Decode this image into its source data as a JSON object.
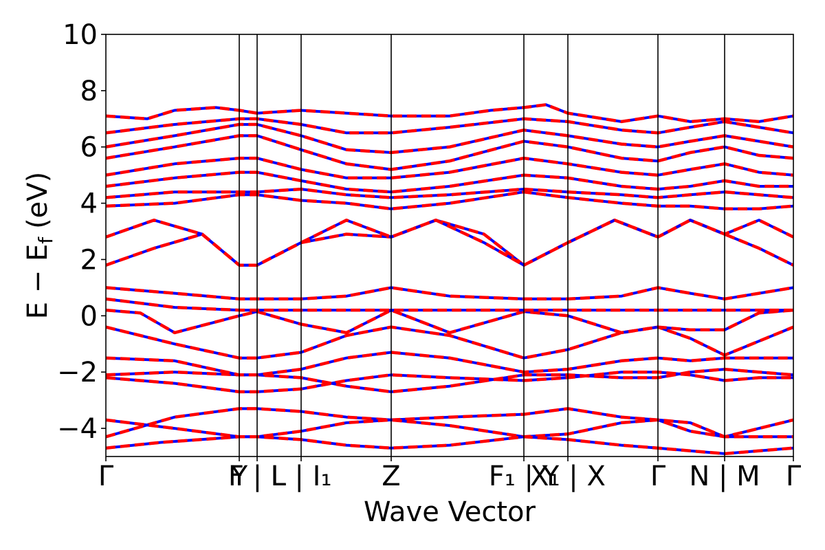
{
  "chart_data": {
    "type": "line",
    "title": "",
    "xlabel": "Wave Vector",
    "ylabel": "E − E_f (eV)",
    "ylabel_parts": {
      "main": "E − E",
      "sub": "f",
      "unit": "(eV)"
    },
    "ylim": [
      -5,
      10
    ],
    "xlim": [
      0,
      1
    ],
    "grid": false,
    "legend": "none",
    "y_ticks": [
      -4,
      -2,
      0,
      2,
      4,
      6,
      8,
      10
    ],
    "y_tick_labels": [
      "−4",
      "−2",
      "0",
      "2",
      "4",
      "6",
      "8",
      "10"
    ],
    "k_points": [
      {
        "x": 0.0,
        "label": "Γ"
      },
      {
        "x": 0.194,
        "label": "Y"
      },
      {
        "x": 0.22,
        "label": "F | L"
      },
      {
        "x": 0.284,
        "label": "L | I₁"
      },
      {
        "x": 0.415,
        "label": "Z"
      },
      {
        "x": 0.608,
        "label": "F₁ | Y"
      },
      {
        "x": 0.672,
        "label": "X₁ | X"
      },
      {
        "x": 0.803,
        "label": "Γ"
      },
      {
        "x": 0.9,
        "label": "N | M"
      },
      {
        "x": 1.0,
        "label": "Γ"
      }
    ],
    "series_styles": [
      {
        "style": "solid",
        "color": "#0000ff"
      },
      {
        "style": "dashed",
        "color": "#ff0000"
      }
    ],
    "bands": [
      {
        "x": [
          0,
          0.1,
          0.194,
          0.22,
          0.284,
          0.35,
          0.415,
          0.5,
          0.608,
          0.672,
          0.75,
          0.803,
          0.85,
          0.9,
          0.95,
          1.0
        ],
        "y": [
          -4.3,
          -3.6,
          -3.3,
          -3.3,
          -3.4,
          -3.6,
          -3.7,
          -3.6,
          -3.5,
          -3.3,
          -3.6,
          -3.7,
          -3.8,
          -4.3,
          -4.0,
          -3.7
        ]
      },
      {
        "x": [
          0,
          0.1,
          0.194,
          0.22,
          0.284,
          0.35,
          0.415,
          0.5,
          0.608,
          0.672,
          0.75,
          0.803,
          0.85,
          0.9,
          0.95,
          1.0
        ],
        "y": [
          -3.7,
          -4.0,
          -4.3,
          -4.3,
          -4.1,
          -3.8,
          -3.7,
          -3.9,
          -4.3,
          -4.2,
          -3.8,
          -3.7,
          -4.1,
          -4.3,
          -4.3,
          -4.3
        ]
      },
      {
        "x": [
          0,
          0.08,
          0.194,
          0.22,
          0.284,
          0.35,
          0.415,
          0.5,
          0.608,
          0.672,
          0.75,
          0.803,
          0.85,
          0.9,
          0.95,
          1.0
        ],
        "y": [
          -4.7,
          -4.5,
          -4.3,
          -4.3,
          -4.4,
          -4.6,
          -4.7,
          -4.6,
          -4.3,
          -4.4,
          -4.6,
          -4.7,
          -4.8,
          -4.9,
          -4.8,
          -4.7
        ]
      },
      {
        "x": [
          0,
          0.1,
          0.194,
          0.22,
          0.284,
          0.35,
          0.415,
          0.5,
          0.608,
          0.672,
          0.75,
          0.803,
          0.85,
          0.9,
          0.95,
          1.0
        ],
        "y": [
          -2.2,
          -2.4,
          -2.7,
          -2.7,
          -2.6,
          -2.3,
          -2.1,
          -2.2,
          -2.3,
          -2.2,
          -2.0,
          -2.0,
          -2.1,
          -2.3,
          -2.2,
          -2.2
        ]
      },
      {
        "x": [
          0,
          0.1,
          0.194,
          0.22,
          0.284,
          0.35,
          0.415,
          0.5,
          0.608,
          0.672,
          0.75,
          0.803,
          0.85,
          0.9,
          0.95,
          1.0
        ],
        "y": [
          -2.1,
          -2.0,
          -2.1,
          -2.1,
          -2.2,
          -2.5,
          -2.7,
          -2.5,
          -2.1,
          -2.1,
          -2.2,
          -2.2,
          -2.0,
          -1.9,
          -2.0,
          -2.1
        ]
      },
      {
        "x": [
          0,
          0.1,
          0.194,
          0.22,
          0.284,
          0.35,
          0.415,
          0.5,
          0.608,
          0.672,
          0.75,
          0.803,
          0.85,
          0.9,
          0.95,
          1.0
        ],
        "y": [
          -1.5,
          -1.6,
          -2.1,
          -2.1,
          -1.9,
          -1.5,
          -1.3,
          -1.5,
          -2.0,
          -1.9,
          -1.6,
          -1.5,
          -1.6,
          -1.5,
          -1.5,
          -1.5
        ]
      },
      {
        "x": [
          0,
          0.1,
          0.194,
          0.22,
          0.284,
          0.35,
          0.415,
          0.5,
          0.608,
          0.672,
          0.75,
          0.803,
          0.85,
          0.9,
          0.95,
          1.0
        ],
        "y": [
          -0.4,
          -1.0,
          -1.5,
          -1.5,
          -1.3,
          -0.7,
          -0.4,
          -0.7,
          -1.5,
          -1.2,
          -0.6,
          -0.4,
          -0.8,
          -1.4,
          -0.9,
          -0.4
        ]
      },
      {
        "x": [
          0,
          0.05,
          0.1,
          0.194,
          0.22,
          0.284,
          0.35,
          0.415,
          0.5,
          0.608,
          0.672,
          0.75,
          0.803,
          0.85,
          0.9,
          0.95,
          1.0
        ],
        "y": [
          0.2,
          0.1,
          -0.6,
          0.0,
          0.15,
          -0.3,
          -0.6,
          0.2,
          -0.6,
          0.15,
          0.0,
          -0.6,
          -0.4,
          -0.5,
          -0.5,
          0.1,
          0.2
        ]
      },
      {
        "x": [
          0,
          0.1,
          0.194,
          0.22,
          0.284,
          0.35,
          0.415,
          0.5,
          0.608,
          0.672,
          0.75,
          0.803,
          0.85,
          0.9,
          0.95,
          1.0
        ],
        "y": [
          0.6,
          0.3,
          0.2,
          0.2,
          0.2,
          0.2,
          0.2,
          0.2,
          0.2,
          0.2,
          0.2,
          0.2,
          0.2,
          0.2,
          0.2,
          0.2
        ]
      },
      {
        "x": [
          0,
          0.1,
          0.194,
          0.22,
          0.284,
          0.35,
          0.415,
          0.5,
          0.608,
          0.672,
          0.75,
          0.803,
          0.85,
          0.9,
          0.95,
          1.0
        ],
        "y": [
          1.0,
          0.8,
          0.6,
          0.6,
          0.6,
          0.7,
          1.0,
          0.7,
          0.6,
          0.6,
          0.7,
          1.0,
          0.8,
          0.6,
          0.8,
          1.0
        ]
      },
      {
        "x": [
          0,
          0.07,
          0.14,
          0.194,
          0.22,
          0.284,
          0.35,
          0.415,
          0.48,
          0.55,
          0.608,
          0.672,
          0.74,
          0.803,
          0.85,
          0.9,
          0.95,
          1.0
        ],
        "y": [
          1.8,
          2.4,
          2.9,
          1.8,
          1.8,
          2.6,
          2.9,
          2.8,
          3.4,
          2.9,
          1.8,
          2.6,
          3.4,
          2.8,
          3.4,
          2.9,
          2.4,
          1.8
        ]
      },
      {
        "x": [
          0,
          0.07,
          0.14,
          0.194,
          0.22,
          0.284,
          0.35,
          0.415,
          0.48,
          0.55,
          0.608,
          0.672,
          0.74,
          0.803,
          0.85,
          0.9,
          0.95,
          1.0
        ],
        "y": [
          2.8,
          3.4,
          2.9,
          1.8,
          1.8,
          2.6,
          3.4,
          2.8,
          3.4,
          2.6,
          1.8,
          2.6,
          3.4,
          2.8,
          3.4,
          2.9,
          3.4,
          2.8
        ]
      },
      {
        "x": [
          0,
          0.1,
          0.194,
          0.22,
          0.284,
          0.35,
          0.415,
          0.5,
          0.608,
          0.672,
          0.75,
          0.803,
          0.85,
          0.9,
          0.95,
          1.0
        ],
        "y": [
          4.2,
          4.4,
          4.4,
          4.4,
          4.5,
          4.3,
          4.2,
          4.3,
          4.5,
          4.4,
          4.3,
          4.2,
          4.3,
          4.4,
          4.3,
          4.2
        ]
      },
      {
        "x": [
          0,
          0.1,
          0.194,
          0.22,
          0.284,
          0.35,
          0.415,
          0.5,
          0.608,
          0.672,
          0.75,
          0.803,
          0.85,
          0.9,
          0.95,
          1.0
        ],
        "y": [
          3.9,
          4.0,
          4.3,
          4.3,
          4.1,
          4.0,
          3.8,
          4.0,
          4.4,
          4.2,
          4.0,
          3.9,
          3.9,
          3.8,
          3.8,
          3.9
        ]
      },
      {
        "x": [
          0,
          0.1,
          0.194,
          0.22,
          0.284,
          0.35,
          0.415,
          0.5,
          0.608,
          0.672,
          0.75,
          0.803,
          0.85,
          0.9,
          0.95,
          1.0
        ],
        "y": [
          4.6,
          4.9,
          5.1,
          5.1,
          4.8,
          4.5,
          4.4,
          4.6,
          5.0,
          4.9,
          4.6,
          4.5,
          4.6,
          4.8,
          4.6,
          4.6
        ]
      },
      {
        "x": [
          0,
          0.1,
          0.194,
          0.22,
          0.284,
          0.35,
          0.415,
          0.5,
          0.608,
          0.672,
          0.75,
          0.803,
          0.85,
          0.9,
          0.95,
          1.0
        ],
        "y": [
          5.0,
          5.4,
          5.6,
          5.6,
          5.2,
          4.9,
          4.9,
          5.1,
          5.6,
          5.4,
          5.1,
          5.0,
          5.2,
          5.4,
          5.1,
          5.0
        ]
      },
      {
        "x": [
          0,
          0.1,
          0.194,
          0.22,
          0.284,
          0.35,
          0.415,
          0.5,
          0.608,
          0.672,
          0.75,
          0.803,
          0.85,
          0.9,
          0.95,
          1.0
        ],
        "y": [
          5.6,
          6.0,
          6.4,
          6.4,
          5.9,
          5.4,
          5.2,
          5.5,
          6.2,
          6.0,
          5.6,
          5.5,
          5.8,
          6.0,
          5.7,
          5.6
        ]
      },
      {
        "x": [
          0,
          0.1,
          0.194,
          0.22,
          0.284,
          0.35,
          0.415,
          0.5,
          0.608,
          0.672,
          0.75,
          0.803,
          0.85,
          0.9,
          0.95,
          1.0
        ],
        "y": [
          6.0,
          6.4,
          6.8,
          6.8,
          6.4,
          5.9,
          5.8,
          6.0,
          6.6,
          6.4,
          6.1,
          6.0,
          6.2,
          6.4,
          6.2,
          6.0
        ]
      },
      {
        "x": [
          0,
          0.1,
          0.194,
          0.22,
          0.284,
          0.35,
          0.415,
          0.5,
          0.608,
          0.672,
          0.75,
          0.803,
          0.85,
          0.9,
          0.95,
          1.0
        ],
        "y": [
          6.5,
          6.8,
          7.0,
          7.0,
          6.8,
          6.5,
          6.5,
          6.7,
          7.0,
          6.9,
          6.6,
          6.5,
          6.7,
          6.9,
          6.7,
          6.5
        ]
      },
      {
        "x": [
          0,
          0.06,
          0.1,
          0.16,
          0.194,
          0.22,
          0.284,
          0.35,
          0.415,
          0.5,
          0.56,
          0.608,
          0.64,
          0.672,
          0.75,
          0.803,
          0.85,
          0.9,
          0.95,
          1.0
        ],
        "y": [
          7.1,
          7.0,
          7.3,
          7.4,
          7.3,
          7.2,
          7.3,
          7.2,
          7.1,
          7.1,
          7.3,
          7.4,
          7.5,
          7.2,
          6.9,
          7.1,
          6.9,
          7.0,
          6.9,
          7.1
        ]
      }
    ]
  }
}
